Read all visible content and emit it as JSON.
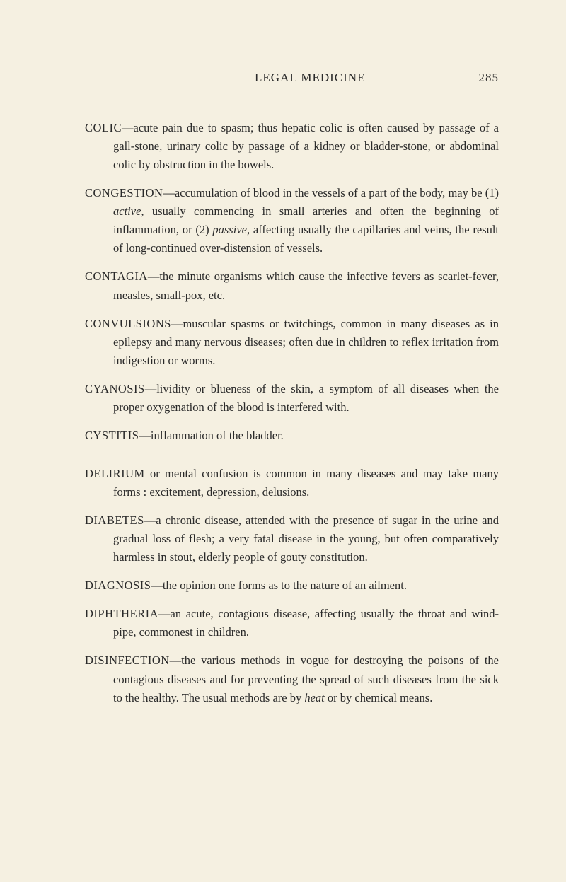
{
  "header": {
    "title": "LEGAL  MEDICINE",
    "pageNumber": "285"
  },
  "entries": [
    {
      "term": "COLIC",
      "definition": "—acute pain due to spasm; thus hepatic colic is often caused by passage of a gall-stone, urinary colic by passage of a kidney or bladder-stone, or abdominal colic by obstruction in the bowels."
    },
    {
      "term": "CONGESTION",
      "definition": "—accumulation of blood in the vessels of a part of the body, may be (1) ",
      "italic1": "active",
      "mid1": ", usually commencing in small arteries and often the beginning of inflammation, or (2) ",
      "italic2": "passive",
      "mid2": ", affecting usually the capillaries and veins, the result of long-continued over-distension of vessels."
    },
    {
      "term": "CONTAGIA",
      "definition": "—the minute organisms which cause the infective fevers as scarlet-fever, measles, small-pox, etc."
    },
    {
      "term": "CONVULSIONS",
      "definition": "—muscular spasms or twitchings, common in many diseases as in epilepsy and many nervous diseases; often due in children to reflex irritation from indigestion or worms."
    },
    {
      "term": "CYANOSIS",
      "definition": "—lividity or blueness of the skin, a symptom of all diseases when the proper oxygenation of the blood is interfered with."
    },
    {
      "term": "CYSTITIS",
      "definition": "—inflammation of the bladder."
    },
    {
      "term": "DELIRIUM",
      "definition": " or mental confusion is common in many diseases and may take many forms : excitement, depression, delusions."
    },
    {
      "term": "DIABETES",
      "definition": "—a chronic disease, attended with the presence of sugar in the urine and gradual loss of flesh; a very fatal disease in the young, but often comparatively harmless in stout, elderly people of gouty constitution."
    },
    {
      "term": "DIAGNOSIS",
      "definition": "—the opinion one forms as to the nature of an ailment."
    },
    {
      "term": "DIPHTHERIA",
      "definition": "—an acute, contagious disease, affecting usually the throat and wind-pipe, commonest in children."
    },
    {
      "term": "DISINFECTION",
      "definition": "—the various methods in vogue for destroying the poisons of the contagious diseases and for preventing the spread of such diseases from the sick to the healthy. The usual methods are by ",
      "italic1": "heat",
      "mid1": " or by chemical means."
    }
  ]
}
